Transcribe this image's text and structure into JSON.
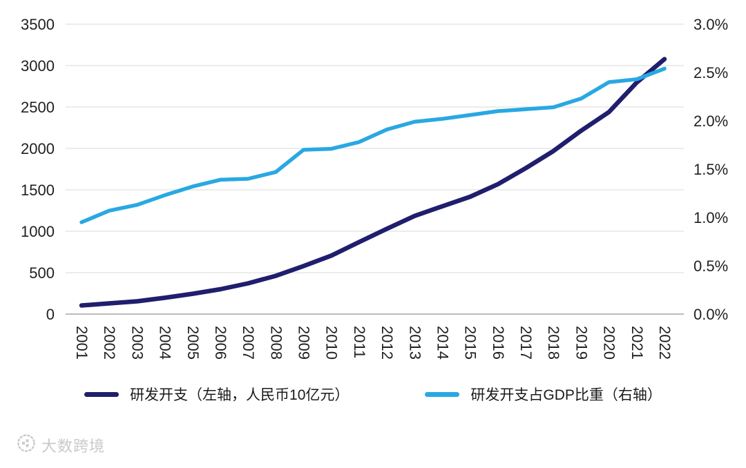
{
  "chart_data": {
    "type": "line",
    "x": [
      "2001",
      "2002",
      "2003",
      "2004",
      "2005",
      "2006",
      "2007",
      "2008",
      "2009",
      "2010",
      "2011",
      "2012",
      "2013",
      "2014",
      "2015",
      "2016",
      "2017",
      "2018",
      "2019",
      "2020",
      "2021",
      "2022"
    ],
    "series": [
      {
        "name": "研发开支（左轴，人民币10亿元）",
        "axis": "left",
        "color": "#201e6d",
        "width": 6.5,
        "values": [
          104,
          129,
          154,
          197,
          245,
          300,
          371,
          462,
          580,
          706,
          869,
          1030,
          1185,
          1302,
          1417,
          1568,
          1761,
          1968,
          2214,
          2439,
          2796,
          3078
        ]
      },
      {
        "name": "研发开支占GDP比重（右轴）",
        "axis": "right",
        "color": "#29a8e2",
        "width": 5.5,
        "values": [
          0.95,
          1.07,
          1.13,
          1.23,
          1.32,
          1.39,
          1.4,
          1.47,
          1.7,
          1.71,
          1.78,
          1.91,
          1.99,
          2.02,
          2.06,
          2.1,
          2.12,
          2.14,
          2.23,
          2.4,
          2.43,
          2.54
        ]
      }
    ],
    "left_axis": {
      "min": 0,
      "max": 3500,
      "step": 500,
      "ticks": [
        "0",
        "500",
        "1000",
        "1500",
        "2000",
        "2500",
        "3000",
        "3500"
      ]
    },
    "right_axis": {
      "min": 0,
      "max": 3.0,
      "step": 0.5,
      "ticks": [
        "0.0%",
        "0.5%",
        "1.0%",
        "1.5%",
        "2.0%",
        "2.5%",
        "3.0%"
      ]
    },
    "grid": true,
    "grid_color": "#d9d9d9",
    "axis_line_color": "#a6a6a6",
    "legend_position": "bottom",
    "title": "",
    "xlabel": "",
    "ylabel_left": "",
    "ylabel_right": ""
  },
  "legend": {
    "items": [
      {
        "label": "研发开支（左轴，人民币10亿元）",
        "color": "#201e6d"
      },
      {
        "label": "研发开支占GDP比重（右轴）",
        "color": "#29a8e2"
      }
    ]
  },
  "watermark": {
    "text": "大数跨境"
  }
}
